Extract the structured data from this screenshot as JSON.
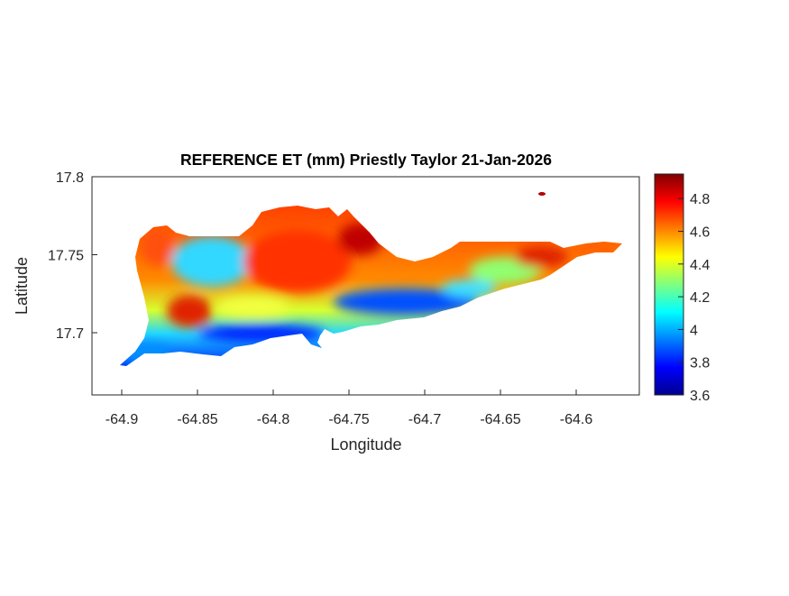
{
  "chart_data": {
    "type": "heatmap",
    "title": "REFERENCE ET (mm) Priestly Taylor 21-Jan-2026",
    "xlabel": "Longitude",
    "ylabel": "Latitude",
    "xlim": [
      -64.92,
      -64.56
    ],
    "ylim": [
      17.66,
      17.8
    ],
    "xticks": [
      -64.9,
      -64.85,
      -64.8,
      -64.75,
      -64.7,
      -64.65,
      -64.6
    ],
    "xtick_labels": [
      "-64.9",
      "-64.85",
      "-64.8",
      "-64.75",
      "-64.7",
      "-64.65",
      "-64.6"
    ],
    "yticks": [
      17.7,
      17.75,
      17.8
    ],
    "ytick_labels": [
      "17.7",
      "17.75",
      "17.8"
    ],
    "colorbar": {
      "colormap": "jet",
      "range": [
        3.6,
        4.95
      ],
      "ticks": [
        3.6,
        3.8,
        4,
        4.2,
        4.4,
        4.6,
        4.8
      ],
      "tick_labels": [
        "3.6",
        "3.8",
        "4",
        "4.2",
        "4.4",
        "4.6",
        "4.8"
      ]
    },
    "description_values": "Higher ET (4.6-4.9 mm) over north and central island, lower ET (3.7-4.1 mm) along southern coast",
    "grid": false
  }
}
